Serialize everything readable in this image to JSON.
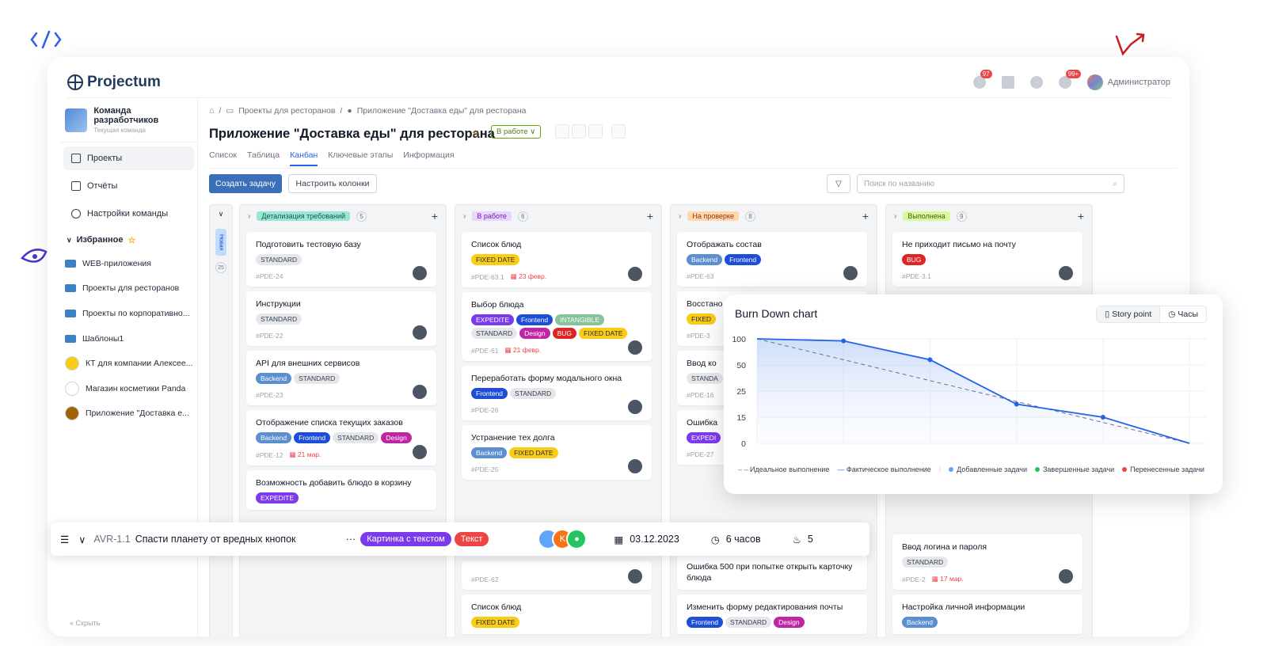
{
  "app": {
    "logo": "Projectum",
    "badges": {
      "tasks": "97",
      "notifications": "99+"
    },
    "user_name": "Администратор"
  },
  "sidebar": {
    "team_name": "Команда разработчиков",
    "team_sub": "Текущая команда",
    "nav": [
      {
        "label": "Проекты",
        "icon": "folder-icon"
      },
      {
        "label": "Отчёты",
        "icon": "report-icon"
      },
      {
        "label": "Настройки команды",
        "icon": "gear-icon"
      }
    ],
    "favorites_label": "Избранное",
    "favorites": [
      {
        "label": "WEB-приложения",
        "kind": "folder"
      },
      {
        "label": "Проекты для ресторанов",
        "kind": "folder"
      },
      {
        "label": "Проекты по корпоративно...",
        "kind": "folder"
      },
      {
        "label": "Шаблоны1",
        "kind": "folder"
      },
      {
        "label": "КТ для компании Алексее...",
        "kind": "avatar",
        "color": "#facc15"
      },
      {
        "label": "Магазин косметики Panda",
        "kind": "avatar",
        "color": "#ffffff"
      },
      {
        "label": "Приложение \"Доставка е...",
        "kind": "avatar",
        "color": "#a16207"
      }
    ],
    "hide_label": "Скрыть"
  },
  "breadcrumb": [
    "Проекты для ресторанов",
    "Приложение \"Доставка еды\" для ресторана"
  ],
  "project": {
    "title": "Приложение \"Доставка еды\" для ресторана",
    "status": "В работе"
  },
  "tabs": [
    "Список",
    "Таблица",
    "Канбан",
    "Ключевые этапы",
    "Информация"
  ],
  "toolbar": {
    "create_label": "Создать задачу",
    "columns_label": "Настроить колонки",
    "search_placeholder": "Поиск по названию"
  },
  "collapsed_column": {
    "label": "Новая",
    "count": "25"
  },
  "columns": [
    {
      "title": "Детализация требований",
      "count": "5",
      "bg": "#99e6d4",
      "fg": "#0f5e4f",
      "cards": [
        {
          "title": "Подготовить тестовую базу",
          "tags": [
            "STANDARD"
          ],
          "id": "#PDE-24",
          "date": ""
        },
        {
          "title": "Инструкции",
          "tags": [
            "STANDARD"
          ],
          "id": "#PDE-22",
          "date": ""
        },
        {
          "title": "API для внешних сервисов",
          "tags": [
            "Backend",
            "STANDARD"
          ],
          "id": "#PDE-23",
          "date": ""
        },
        {
          "title": "Отображение списка текущих заказов",
          "tags": [
            "Backend",
            "Frontend",
            "STANDARD",
            "Design"
          ],
          "id": "#PDE-12",
          "date": "21 мар."
        },
        {
          "title": "Возможность добавить блюдо в корзину",
          "tags": [
            "EXPEDITE"
          ],
          "id": "",
          "date": ""
        }
      ]
    },
    {
      "title": "В работе",
      "count": "6",
      "bg": "#e9d5ff",
      "fg": "#6b21a8",
      "cards": [
        {
          "title": "Список блюд",
          "tags": [
            "FIXED DATE"
          ],
          "id": "#PDE-63.1",
          "date": "23 февр."
        },
        {
          "title": "Выбор блюда",
          "tags": [
            "EXPEDITE",
            "Frontend",
            "INTANGIBLE",
            "STANDARD",
            "Design",
            "BUG",
            "FIXED DATE"
          ],
          "id": "#PDE-61",
          "date": "21 февр."
        },
        {
          "title": "Переработать форму модального окна",
          "tags": [
            "Frontend",
            "STANDARD"
          ],
          "id": "#PDE-26",
          "date": ""
        },
        {
          "title": "Устранение тех долга",
          "tags": [
            "Backend",
            "FIXED DATE"
          ],
          "id": "#PDE-25",
          "date": ""
        }
      ],
      "tail_cards": [
        {
          "title": "",
          "tags": [],
          "id": "#PDE-62",
          "date": ""
        },
        {
          "title": "Список блюд",
          "tags": [
            "FIXED DATE"
          ],
          "id": "",
          "date": ""
        }
      ]
    },
    {
      "title": "На проверке",
      "count": "8",
      "bg": "#fed7aa",
      "fg": "#9a3412",
      "cards": [
        {
          "title": "Отображать состав",
          "tags": [
            "Backend",
            "Frontend"
          ],
          "id": "#PDE-63",
          "date": ""
        },
        {
          "title": "Восстано",
          "tags": [
            "FIXED"
          ],
          "id": "#PDE-3",
          "date": ""
        },
        {
          "title": "Ввод ко",
          "tags": [
            "STANDA"
          ],
          "id": "#PDE-16",
          "date": ""
        },
        {
          "title": "Ошибка",
          "tags": [
            "EXPEDI"
          ],
          "id": "#PDE-27",
          "date": ""
        }
      ],
      "tail_cards": [
        {
          "title": "Ошибка 500 при попытке открыть карточку блюда",
          "tags": [],
          "id": "",
          "date": ""
        },
        {
          "title": "Изменить форму редактирования почты",
          "tags": [
            "Frontend",
            "STANDARD",
            "Design"
          ],
          "id": "",
          "date": ""
        }
      ]
    },
    {
      "title": "Выполнена",
      "count": "9",
      "bg": "#d9f99d",
      "fg": "#3f6212",
      "cards": [
        {
          "title": "Не приходит письмо на почту",
          "tags": [
            "BUG"
          ],
          "id": "#PDE-3.1",
          "date": ""
        }
      ],
      "tail_cards": [
        {
          "title": "Ввод логина и пароля",
          "tags": [
            "STANDARD"
          ],
          "id": "#PDE-2",
          "date": "17 мар."
        },
        {
          "title": "Настройка личной информации",
          "tags": [
            "Backend"
          ],
          "id": "",
          "date": ""
        }
      ]
    }
  ],
  "taskbar": {
    "id": "AVR-1.1",
    "title": "Спасти планету от вредных кнопок",
    "tags": [
      "Картинка с текстом",
      "Текст"
    ],
    "avatar_letter": "K",
    "date": "03.12.2023",
    "duration": "6 часов",
    "points": "5"
  },
  "burndown": {
    "title": "Burn Down chart",
    "toggle": [
      "Story point",
      "Часы"
    ],
    "legend": [
      "Идеальное выполнение",
      "Фактическое выполнение",
      "Добавленные задачи",
      "Завершенные задачи",
      "Перенесенные задачи"
    ],
    "chart_data": {
      "type": "line",
      "y_ticks": [
        "100",
        "50",
        "25",
        "15",
        "0"
      ],
      "x_steps": [
        0,
        1,
        2,
        3,
        4,
        5,
        6,
        7
      ],
      "series": [
        {
          "name": "Фактическое выполнение",
          "points": [
            [
              0,
              100
            ],
            [
              1,
              96
            ],
            [
              2,
              60
            ],
            [
              3,
              20
            ],
            [
              4,
              15
            ],
            [
              5,
              0
            ]
          ]
        },
        {
          "name": "Идеальное выполнение",
          "points": [
            [
              0,
              100
            ],
            [
              5,
              0
            ]
          ]
        }
      ]
    }
  }
}
